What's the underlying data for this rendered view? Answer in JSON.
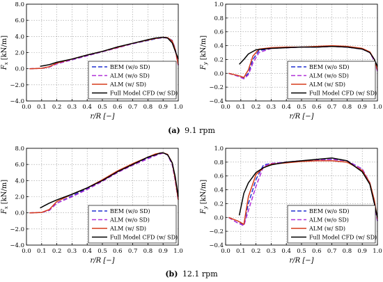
{
  "captions": {
    "top": {
      "label": "(a)",
      "text": "9.1 rpm"
    },
    "bottom": {
      "label": "(b)",
      "text": "12.1 rpm"
    }
  },
  "legend_entries": [
    {
      "name": "BEM (w/o SD)",
      "color": "#1f2fd1",
      "dash": "6,3"
    },
    {
      "name": "ALM (w/o SD)",
      "color": "#b030d8",
      "dash": "6,3"
    },
    {
      "name": "ALM (w/ SD)",
      "color": "#d63a1a",
      "dash": ""
    },
    {
      "name": "Full Model CFD (w/ SD)",
      "color": "#000000",
      "dash": ""
    }
  ],
  "chart_data": [
    {
      "id": "a-fx",
      "type": "line",
      "ylabel_main": "F",
      "ylabel_sub": "x",
      "ylabel_unit": "[kN/m]",
      "xlabel": "r/R [−]",
      "xlim": [
        0,
        1
      ],
      "ylim": [
        -4,
        8
      ],
      "xticks": [
        0,
        0.1,
        0.2,
        0.3,
        0.4,
        0.5,
        0.6,
        0.7,
        0.8,
        0.9,
        1.0
      ],
      "xtick_labels": [
        "0.0",
        "0.1",
        "0.2",
        "0.3",
        "0.4",
        "0.5",
        "0.6",
        "0.7",
        "0.8",
        "0.9",
        "1.0"
      ],
      "yticks": [
        -4,
        -2,
        0,
        2,
        4,
        6,
        8
      ],
      "ytick_labels": [
        "−4.0",
        "−2.0",
        "0.0",
        "2.0",
        "4.0",
        "6.0",
        "8.0"
      ],
      "grid": true,
      "legend": "bottom-right",
      "series": [
        {
          "name": "BEM (w/o SD)",
          "x": [
            0.02,
            0.1,
            0.15,
            0.2,
            0.3,
            0.4,
            0.5,
            0.6,
            0.7,
            0.8,
            0.85,
            0.9,
            0.93,
            0.96,
            0.98,
            1.0
          ],
          "y": [
            0,
            0.05,
            0.2,
            0.6,
            1.1,
            1.6,
            2.1,
            2.6,
            3.1,
            3.5,
            3.7,
            3.85,
            3.85,
            3.5,
            2.5,
            0.5
          ]
        },
        {
          "name": "ALM (w/o SD)",
          "x": [
            0.02,
            0.1,
            0.15,
            0.2,
            0.3,
            0.4,
            0.5,
            0.6,
            0.7,
            0.8,
            0.85,
            0.9,
            0.93,
            0.96,
            0.98,
            1.0
          ],
          "y": [
            0,
            0.05,
            0.2,
            0.6,
            1.1,
            1.6,
            2.1,
            2.6,
            3.1,
            3.55,
            3.75,
            3.85,
            3.8,
            3.4,
            2.3,
            0.4
          ]
        },
        {
          "name": "ALM (w/ SD)",
          "x": [
            0.02,
            0.1,
            0.15,
            0.2,
            0.3,
            0.4,
            0.5,
            0.6,
            0.7,
            0.8,
            0.85,
            0.9,
            0.93,
            0.96,
            0.98,
            1.0
          ],
          "y": [
            0,
            0.05,
            0.25,
            0.7,
            1.2,
            1.7,
            2.15,
            2.65,
            3.15,
            3.55,
            3.75,
            3.9,
            3.85,
            3.45,
            2.4,
            0.5
          ]
        },
        {
          "name": "Full Model CFD (w/ SD)",
          "x": [
            0.09,
            0.15,
            0.2,
            0.3,
            0.4,
            0.5,
            0.6,
            0.7,
            0.8,
            0.85,
            0.9,
            0.93,
            0.96,
            0.98,
            1.0
          ],
          "y": [
            0.3,
            0.5,
            0.8,
            1.2,
            1.7,
            2.15,
            2.7,
            3.15,
            3.6,
            3.8,
            3.9,
            3.8,
            3.2,
            2.2,
            1.2
          ]
        }
      ]
    },
    {
      "id": "a-fy",
      "type": "line",
      "ylabel_main": "F",
      "ylabel_sub": "y",
      "ylabel_unit": "[kN/m]",
      "xlabel": "r/R [−]",
      "xlim": [
        0,
        1
      ],
      "ylim": [
        -0.4,
        1.0
      ],
      "xticks": [
        0,
        0.1,
        0.2,
        0.3,
        0.4,
        0.5,
        0.6,
        0.7,
        0.8,
        0.9,
        1.0
      ],
      "xtick_labels": [
        "0.0",
        "0.1",
        "0.2",
        "0.3",
        "0.4",
        "0.5",
        "0.6",
        "0.7",
        "0.8",
        "0.9",
        "1.0"
      ],
      "yticks": [
        -0.4,
        -0.2,
        0,
        0.2,
        0.4,
        0.6,
        0.8,
        1.0
      ],
      "ytick_labels": [
        "−0.4",
        "−0.2",
        "0.0",
        "0.2",
        "0.4",
        "0.6",
        "0.8",
        "1.0"
      ],
      "grid": true,
      "legend": "bottom-right",
      "series": [
        {
          "name": "BEM (w/o SD)",
          "x": [
            0.02,
            0.08,
            0.12,
            0.15,
            0.18,
            0.22,
            0.3,
            0.4,
            0.5,
            0.6,
            0.7,
            0.8,
            0.9,
            0.95,
            0.98,
            1.0
          ],
          "y": [
            0,
            -0.04,
            -0.07,
            0.0,
            0.2,
            0.33,
            0.36,
            0.37,
            0.38,
            0.38,
            0.39,
            0.38,
            0.35,
            0.3,
            0.2,
            0.05
          ]
        },
        {
          "name": "ALM (w/o SD)",
          "x": [
            0.02,
            0.08,
            0.12,
            0.15,
            0.18,
            0.22,
            0.3,
            0.4,
            0.5,
            0.6,
            0.7,
            0.8,
            0.9,
            0.95,
            0.98,
            1.0
          ],
          "y": [
            0,
            -0.04,
            -0.08,
            -0.02,
            0.15,
            0.3,
            0.36,
            0.37,
            0.38,
            0.38,
            0.39,
            0.38,
            0.35,
            0.3,
            0.18,
            0.03
          ]
        },
        {
          "name": "ALM (w/ SD)",
          "x": [
            0.02,
            0.08,
            0.12,
            0.15,
            0.18,
            0.22,
            0.3,
            0.4,
            0.5,
            0.6,
            0.7,
            0.8,
            0.9,
            0.95,
            0.98,
            1.0
          ],
          "y": [
            0,
            -0.03,
            -0.06,
            0.05,
            0.25,
            0.35,
            0.37,
            0.38,
            0.38,
            0.39,
            0.4,
            0.39,
            0.36,
            0.31,
            0.2,
            0.05
          ]
        },
        {
          "name": "Full Model CFD (w/ SD)",
          "x": [
            0.09,
            0.12,
            0.15,
            0.2,
            0.25,
            0.3,
            0.4,
            0.5,
            0.6,
            0.7,
            0.8,
            0.9,
            0.95,
            0.98,
            1.0
          ],
          "y": [
            0.13,
            0.2,
            0.28,
            0.34,
            0.35,
            0.36,
            0.37,
            0.38,
            0.38,
            0.39,
            0.38,
            0.35,
            0.3,
            0.2,
            0.1
          ]
        }
      ]
    },
    {
      "id": "b-fx",
      "type": "line",
      "ylabel_main": "F",
      "ylabel_sub": "x",
      "ylabel_unit": "[kN/m]",
      "xlabel": "r/R [−]",
      "xlim": [
        0,
        1
      ],
      "ylim": [
        -4,
        8
      ],
      "xticks": [
        0,
        0.1,
        0.2,
        0.3,
        0.4,
        0.5,
        0.6,
        0.7,
        0.8,
        0.9,
        1.0
      ],
      "xtick_labels": [
        "0.0",
        "0.1",
        "0.2",
        "0.3",
        "0.4",
        "0.5",
        "0.6",
        "0.7",
        "0.8",
        "0.9",
        "1.0"
      ],
      "yticks": [
        -4,
        -2,
        0,
        2,
        4,
        6,
        8
      ],
      "ytick_labels": [
        "−4.0",
        "−2.0",
        "0.0",
        "2.0",
        "4.0",
        "6.0",
        "8.0"
      ],
      "grid": true,
      "legend": "bottom-right",
      "series": [
        {
          "name": "BEM (w/o SD)",
          "x": [
            0.02,
            0.1,
            0.15,
            0.2,
            0.3,
            0.4,
            0.5,
            0.6,
            0.7,
            0.8,
            0.85,
            0.88,
            0.9,
            0.93,
            0.96,
            0.98,
            1.0
          ],
          "y": [
            0,
            0.05,
            0.3,
            1.2,
            2.1,
            3.0,
            4.0,
            5.1,
            6.0,
            6.8,
            7.2,
            7.35,
            7.4,
            7.2,
            6.0,
            4.0,
            1.5
          ]
        },
        {
          "name": "ALM (w/o SD)",
          "x": [
            0.02,
            0.1,
            0.15,
            0.2,
            0.3,
            0.4,
            0.5,
            0.6,
            0.7,
            0.8,
            0.85,
            0.88,
            0.9,
            0.93,
            0.96,
            0.98,
            1.0
          ],
          "y": [
            0,
            0.05,
            0.3,
            1.2,
            2.0,
            2.9,
            3.9,
            5.0,
            5.9,
            6.7,
            7.1,
            7.3,
            7.4,
            7.2,
            6.0,
            4.0,
            1.5
          ]
        },
        {
          "name": "ALM (w/ SD)",
          "x": [
            0.02,
            0.1,
            0.15,
            0.2,
            0.3,
            0.4,
            0.5,
            0.6,
            0.7,
            0.8,
            0.85,
            0.88,
            0.9,
            0.93,
            0.96,
            0.98,
            1.0
          ],
          "y": [
            0,
            0.05,
            0.4,
            1.4,
            2.3,
            3.1,
            4.1,
            5.2,
            6.1,
            6.9,
            7.3,
            7.4,
            7.45,
            7.25,
            6.2,
            4.2,
            1.6
          ]
        },
        {
          "name": "Full Model CFD (w/ SD)",
          "x": [
            0.09,
            0.12,
            0.15,
            0.2,
            0.3,
            0.4,
            0.5,
            0.6,
            0.7,
            0.8,
            0.85,
            0.88,
            0.9,
            0.93,
            0.96,
            0.98,
            1.0
          ],
          "y": [
            0.6,
            0.9,
            1.2,
            1.6,
            2.3,
            3.1,
            4.0,
            5.1,
            6.0,
            6.9,
            7.2,
            7.4,
            7.45,
            7.2,
            6.2,
            4.5,
            2.0
          ]
        }
      ]
    },
    {
      "id": "b-fy",
      "type": "line",
      "ylabel_main": "F",
      "ylabel_sub": "y",
      "ylabel_unit": "[kN/m]",
      "xlabel": "r/R [−]",
      "xlim": [
        0,
        1
      ],
      "ylim": [
        -0.4,
        1.0
      ],
      "xticks": [
        0,
        0.1,
        0.2,
        0.3,
        0.4,
        0.5,
        0.6,
        0.7,
        0.8,
        0.9,
        1.0
      ],
      "xtick_labels": [
        "0.0",
        "0.1",
        "0.2",
        "0.3",
        "0.4",
        "0.5",
        "0.6",
        "0.7",
        "0.8",
        "0.9",
        "1.0"
      ],
      "yticks": [
        -0.4,
        -0.2,
        0,
        0.2,
        0.4,
        0.6,
        0.8,
        1.0
      ],
      "ytick_labels": [
        "−0.4",
        "−0.2",
        "0.0",
        "0.2",
        "0.4",
        "0.6",
        "0.8",
        "1.0"
      ],
      "grid": true,
      "legend": "bottom-right",
      "series": [
        {
          "name": "BEM (w/o SD)",
          "x": [
            0.02,
            0.08,
            0.12,
            0.15,
            0.2,
            0.25,
            0.3,
            0.4,
            0.5,
            0.6,
            0.7,
            0.8,
            0.9,
            0.95,
            0.98,
            1.0
          ],
          "y": [
            0,
            -0.08,
            -0.1,
            0.2,
            0.55,
            0.76,
            0.78,
            0.8,
            0.82,
            0.83,
            0.84,
            0.82,
            0.7,
            0.5,
            0.2,
            -0.05
          ]
        },
        {
          "name": "ALM (w/o SD)",
          "x": [
            0.02,
            0.08,
            0.12,
            0.15,
            0.2,
            0.25,
            0.3,
            0.4,
            0.5,
            0.6,
            0.7,
            0.8,
            0.9,
            0.95,
            0.98,
            1.0
          ],
          "y": [
            0,
            -0.08,
            -0.12,
            0.1,
            0.45,
            0.74,
            0.78,
            0.8,
            0.82,
            0.83,
            0.84,
            0.82,
            0.7,
            0.5,
            0.2,
            -0.05
          ]
        },
        {
          "name": "ALM (w/ SD)",
          "x": [
            0.02,
            0.08,
            0.12,
            0.15,
            0.2,
            0.25,
            0.3,
            0.4,
            0.5,
            0.6,
            0.7,
            0.8,
            0.9,
            0.95,
            0.98,
            1.0
          ],
          "y": [
            0,
            -0.05,
            -0.1,
            0.3,
            0.62,
            0.72,
            0.77,
            0.79,
            0.81,
            0.82,
            0.82,
            0.8,
            0.68,
            0.5,
            0.25,
            -0.02
          ]
        },
        {
          "name": "Full Model CFD (w/ SD)",
          "x": [
            0.09,
            0.12,
            0.15,
            0.2,
            0.25,
            0.3,
            0.4,
            0.5,
            0.6,
            0.7,
            0.8,
            0.9,
            0.95,
            0.98,
            1.0
          ],
          "y": [
            0.03,
            0.35,
            0.5,
            0.65,
            0.72,
            0.76,
            0.8,
            0.82,
            0.84,
            0.86,
            0.82,
            0.66,
            0.48,
            0.2,
            0.0
          ]
        }
      ]
    }
  ]
}
